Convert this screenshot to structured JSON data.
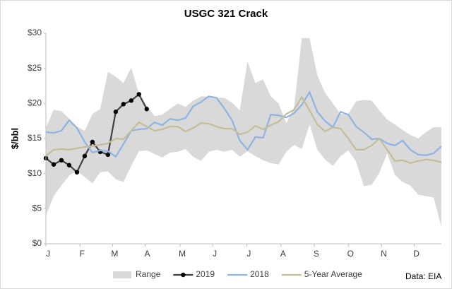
{
  "chart_data": {
    "type": "line",
    "title": "USGC 321 Crack",
    "y_label": "$/bbl",
    "annotation": "Data: EIA",
    "x": [
      0,
      1,
      2,
      3,
      4,
      5,
      6,
      7,
      8,
      9,
      10,
      11,
      12,
      13,
      14,
      15,
      16,
      17,
      18,
      19,
      20,
      21,
      22,
      23,
      24,
      25,
      26,
      27,
      28,
      29,
      30,
      31,
      32,
      33,
      34,
      35,
      36,
      37,
      38,
      39,
      40,
      41,
      42,
      43,
      44,
      45,
      46,
      47,
      48,
      49,
      50,
      51
    ],
    "xlim": [
      0,
      51
    ],
    "xticks": [
      {
        "value": 0,
        "label": "J"
      },
      {
        "value": 4.4,
        "label": "F"
      },
      {
        "value": 8.6,
        "label": "M"
      },
      {
        "value": 12.8,
        "label": "A"
      },
      {
        "value": 17.3,
        "label": "M"
      },
      {
        "value": 21.5,
        "label": "J"
      },
      {
        "value": 25.9,
        "label": "J"
      },
      {
        "value": 30.3,
        "label": "A"
      },
      {
        "value": 34.6,
        "label": "S"
      },
      {
        "value": 39,
        "label": "O"
      },
      {
        "value": 43.3,
        "label": "N"
      },
      {
        "value": 47.5,
        "label": "D"
      }
    ],
    "ylim": [
      0,
      30
    ],
    "yticks": [
      {
        "value": 0,
        "label": "$0"
      },
      {
        "value": 5,
        "label": "$5"
      },
      {
        "value": 10,
        "label": "$10"
      },
      {
        "value": 15,
        "label": "$15"
      },
      {
        "value": 20,
        "label": "$20"
      },
      {
        "value": 25,
        "label": "$25"
      },
      {
        "value": 30,
        "label": "$30"
      }
    ],
    "grid": false,
    "legend": "bottom",
    "series": [
      {
        "name": "Range",
        "type": "range",
        "color": "#d9d9d9",
        "low": [
          4.0,
          6.8,
          8.3,
          9.7,
          10.4,
          9.5,
          8.6,
          10.2,
          10.3,
          9.2,
          8.8,
          11.1,
          13.2,
          13.3,
          12.8,
          12.3,
          13.0,
          13.1,
          13.5,
          12.4,
          11.8,
          13.1,
          13.4,
          13.1,
          13.4,
          12.4,
          13.2,
          12.5,
          11.9,
          11.5,
          11.3,
          13.1,
          14.1,
          13.5,
          17.0,
          13.4,
          12.0,
          11.1,
          12.5,
          13.3,
          11.7,
          8.2,
          8.4,
          10.1,
          12.9,
          9.8,
          8.8,
          8.3,
          7.0,
          6.8,
          6.6,
          2.4
        ],
        "high": [
          16.5,
          19.1,
          18.9,
          17.8,
          16.7,
          16.1,
          18.5,
          19.2,
          24.5,
          23.8,
          22.9,
          25.1,
          21.4,
          19.7,
          18.2,
          18.4,
          19.2,
          20.0,
          19.5,
          20.4,
          21.0,
          21.0,
          20.8,
          20.8,
          20.1,
          19.0,
          26.0,
          22.9,
          23.4,
          21.0,
          20.0,
          17.2,
          19.4,
          29.3,
          29.3,
          24.0,
          21.5,
          20.0,
          18.5,
          18.5,
          20.3,
          20.5,
          20.4,
          19.0,
          17.7,
          17.0,
          16.2,
          15.5,
          15.0,
          15.9,
          16.6,
          16.6
        ]
      },
      {
        "name": "2019",
        "color": "#404040",
        "markers": true,
        "x": [
          0,
          1,
          2,
          3,
          4,
          5,
          6,
          7,
          8,
          9,
          10,
          11,
          12,
          13
        ],
        "values": [
          12.2,
          11.3,
          11.9,
          11.2,
          10.2,
          12.5,
          14.5,
          13.1,
          12.7,
          18.8,
          19.9,
          20.4,
          21.3,
          19.2
        ]
      },
      {
        "name": "2018",
        "color": "#8db4e2",
        "values": [
          15.9,
          15.8,
          16.1,
          17.6,
          16.5,
          14.5,
          13.0,
          13.3,
          13.2,
          12.4,
          14.2,
          16.1,
          16.3,
          16.4,
          17.3,
          16.9,
          17.8,
          17.6,
          17.9,
          19.6,
          20.2,
          21.0,
          20.8,
          19.3,
          17.6,
          14.7,
          13.4,
          15.2,
          15.1,
          18.4,
          18.3,
          18.0,
          18.6,
          19.8,
          21.6,
          18.8,
          17.5,
          16.6,
          18.8,
          18.4,
          16.7,
          15.9,
          14.9,
          15.0,
          14.3,
          14.0,
          14.7,
          13.4,
          12.7,
          12.6,
          12.9,
          13.9
        ]
      },
      {
        "name": "5-Year Average",
        "color": "#c4bd97",
        "values": [
          12.5,
          13.4,
          13.5,
          13.4,
          13.6,
          13.8,
          13.9,
          14.1,
          14.3,
          15.0,
          14.9,
          16.1,
          17.3,
          16.7,
          16.1,
          16.3,
          16.7,
          16.7,
          16.0,
          16.5,
          17.2,
          17.1,
          16.7,
          16.4,
          16.4,
          15.6,
          15.9,
          16.8,
          16.3,
          16.9,
          17.4,
          18.5,
          19.1,
          20.9,
          19.0,
          17.0,
          16.0,
          16.6,
          16.4,
          15.0,
          13.4,
          13.4,
          14.0,
          15.0,
          13.4,
          11.8,
          11.9,
          11.5,
          11.8,
          12.0,
          11.9,
          11.6
        ]
      }
    ]
  }
}
